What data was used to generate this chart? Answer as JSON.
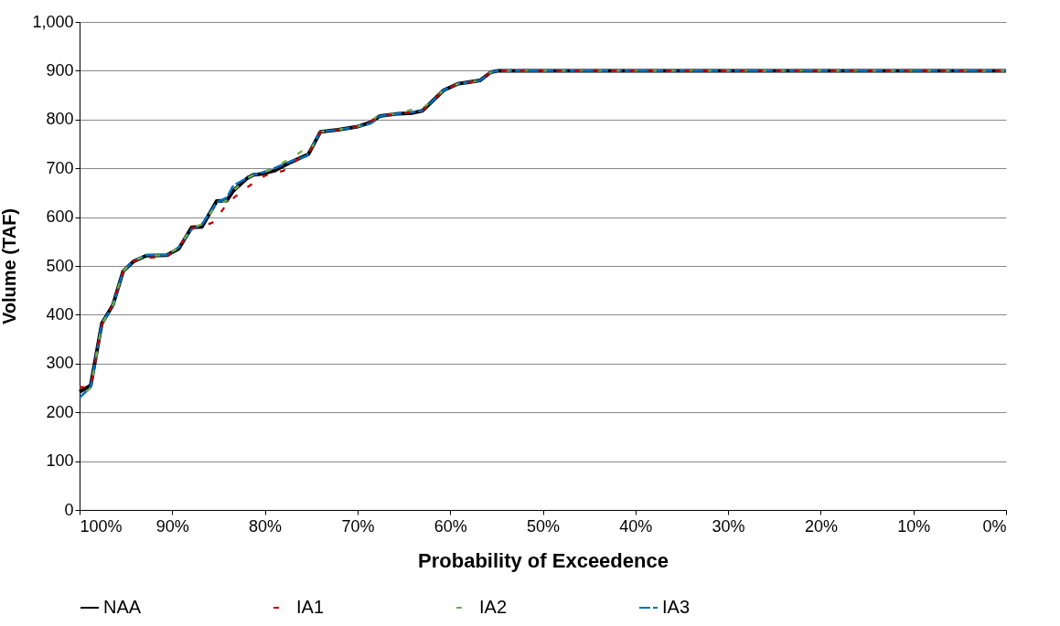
{
  "chart_data": {
    "type": "line",
    "xlabel": "Probability of Exceedence",
    "ylabel": "Volume (TAF)",
    "xlim": [
      100,
      0
    ],
    "ylim": [
      0,
      1000
    ],
    "xticks": [
      {
        "value": 100,
        "label": "100%"
      },
      {
        "value": 90,
        "label": "90%"
      },
      {
        "value": 80,
        "label": "80%"
      },
      {
        "value": 70,
        "label": "70%"
      },
      {
        "value": 60,
        "label": "60%"
      },
      {
        "value": 50,
        "label": "50%"
      },
      {
        "value": 40,
        "label": "40%"
      },
      {
        "value": 30,
        "label": "30%"
      },
      {
        "value": 20,
        "label": "20%"
      },
      {
        "value": 10,
        "label": "10%"
      },
      {
        "value": 0,
        "label": "0%"
      }
    ],
    "yticks": [
      0,
      100,
      200,
      300,
      400,
      500,
      600,
      700,
      800,
      900,
      {
        "value": 1000,
        "label": "1,000"
      }
    ],
    "grid": "y",
    "legend": "bottom",
    "marker": "none",
    "series": [
      {
        "name": "NAA",
        "color": "#000000",
        "line_style": "solid",
        "x": [
          100,
          98.8,
          97.6,
          96.4,
          95.3,
          94.2,
          92.8,
          90.6,
          89.3,
          87.9,
          86.8,
          85.2,
          84.1,
          83.4,
          81.9,
          81.2,
          80.5,
          79.0,
          77.5,
          75.3,
          74.0,
          72.1,
          70.1,
          68.6,
          67.6,
          65.6,
          64.2,
          63.0,
          60.7,
          59.2,
          56.8,
          55.6,
          54.8,
          0
        ],
        "values": [
          242,
          255,
          382,
          420,
          489,
          509,
          521,
          522,
          535,
          579,
          580,
          633,
          634,
          654,
          680,
          687,
          688,
          695,
          710,
          729,
          775,
          779,
          785,
          794,
          807,
          812,
          813,
          818,
          860,
          873,
          880,
          897,
          900,
          900
        ]
      },
      {
        "name": "IA1",
        "color": "#c00000",
        "line_style": "dashed",
        "x": [
          100,
          98.8,
          97.6,
          96.4,
          95.3,
          94.2,
          92.8,
          90.6,
          89.3,
          87.9,
          86.8,
          85.5,
          84.0,
          82.0,
          80.0,
          78.0,
          76.0,
          75.3,
          74.0,
          72.1,
          70.1,
          68.6,
          67.6,
          65.6,
          64.2,
          63.0,
          60.7,
          59.2,
          56.8,
          55.6,
          54.8,
          0
        ],
        "values": [
          252,
          250,
          380,
          420,
          489,
          510,
          517,
          518,
          538,
          578,
          580,
          590,
          630,
          660,
          685,
          695,
          725,
          730,
          775,
          779,
          785,
          796,
          807,
          812,
          815,
          818,
          860,
          873,
          880,
          897,
          900,
          900
        ]
      },
      {
        "name": "IA2",
        "color": "#70ad47",
        "line_style": "dashed",
        "x": [
          100,
          98.8,
          97.6,
          96.4,
          95.3,
          94.2,
          92.8,
          90.6,
          89.3,
          87.9,
          86.8,
          85.2,
          84.1,
          83.4,
          81.9,
          81.2,
          80.5,
          79.0,
          77.5,
          76.0,
          75.3,
          74.0,
          72.1,
          70.1,
          68.6,
          67.6,
          65.6,
          64.2,
          63.0,
          60.7,
          59.2,
          56.8,
          55.6,
          54.8,
          0
        ],
        "values": [
          230,
          250,
          380,
          420,
          489,
          510,
          521,
          522,
          538,
          578,
          585,
          625,
          634,
          654,
          680,
          687,
          690,
          700,
          718,
          735,
          729,
          775,
          779,
          785,
          796,
          810,
          812,
          820,
          822,
          860,
          873,
          880,
          897,
          900,
          900
        ]
      },
      {
        "name": "IA3",
        "color": "#0070c0",
        "line_style": "dashed",
        "x": [
          100,
          98.8,
          97.6,
          96.4,
          95.3,
          94.2,
          92.8,
          90.6,
          89.3,
          87.9,
          86.8,
          85.2,
          84.1,
          83.4,
          81.9,
          81.2,
          80.5,
          79.0,
          77.5,
          75.5,
          74.0,
          72.1,
          70.1,
          68.6,
          67.6,
          65.6,
          64.2,
          63.0,
          60.7,
          59.2,
          56.8,
          55.6,
          54.8,
          0
        ],
        "values": [
          230,
          252,
          382,
          418,
          489,
          510,
          522,
          522,
          538,
          575,
          585,
          630,
          640,
          665,
          680,
          687,
          690,
          700,
          712,
          725,
          775,
          779,
          785,
          792,
          807,
          812,
          815,
          818,
          860,
          873,
          880,
          897,
          900,
          900
        ]
      }
    ]
  }
}
